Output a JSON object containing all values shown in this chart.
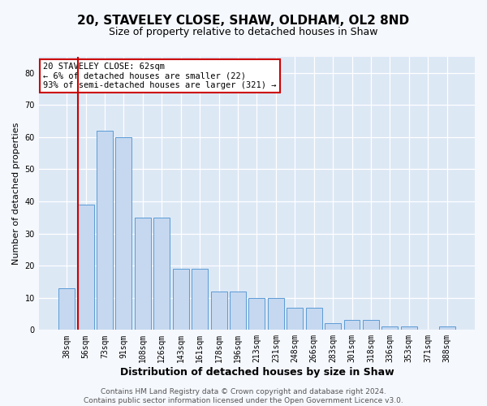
{
  "title": "20, STAVELEY CLOSE, SHAW, OLDHAM, OL2 8ND",
  "subtitle": "Size of property relative to detached houses in Shaw",
  "xlabel": "Distribution of detached houses by size in Shaw",
  "ylabel": "Number of detached properties",
  "categories": [
    "38sqm",
    "56sqm",
    "73sqm",
    "91sqm",
    "108sqm",
    "126sqm",
    "143sqm",
    "161sqm",
    "178sqm",
    "196sqm",
    "213sqm",
    "231sqm",
    "248sqm",
    "266sqm",
    "283sqm",
    "301sqm",
    "318sqm",
    "336sqm",
    "353sqm",
    "371sqm",
    "388sqm"
  ],
  "values": [
    13,
    39,
    62,
    60,
    35,
    35,
    19,
    19,
    12,
    12,
    10,
    10,
    7,
    7,
    2,
    3,
    3,
    1,
    1,
    0,
    1
  ],
  "bar_color": "#c5d8f0",
  "bar_edge_color": "#5b9bd5",
  "highlight_bar_index": 1,
  "highlight_line_color": "#cc0000",
  "ylim": [
    0,
    85
  ],
  "yticks": [
    0,
    10,
    20,
    30,
    40,
    50,
    60,
    70,
    80
  ],
  "annotation_text": "20 STAVELEY CLOSE: 62sqm\n← 6% of detached houses are smaller (22)\n93% of semi-detached houses are larger (321) →",
  "annotation_box_color": "#ffffff",
  "annotation_box_edge_color": "#cc0000",
  "footer_text": "Contains HM Land Registry data © Crown copyright and database right 2024.\nContains public sector information licensed under the Open Government Licence v3.0.",
  "plot_bg_color": "#dde8f5",
  "fig_bg_color": "#f5f8fd",
  "grid_color": "#ffffff",
  "title_fontsize": 11,
  "subtitle_fontsize": 9,
  "xlabel_fontsize": 9,
  "ylabel_fontsize": 8,
  "tick_fontsize": 7,
  "annotation_fontsize": 7.5,
  "footer_fontsize": 6.5
}
